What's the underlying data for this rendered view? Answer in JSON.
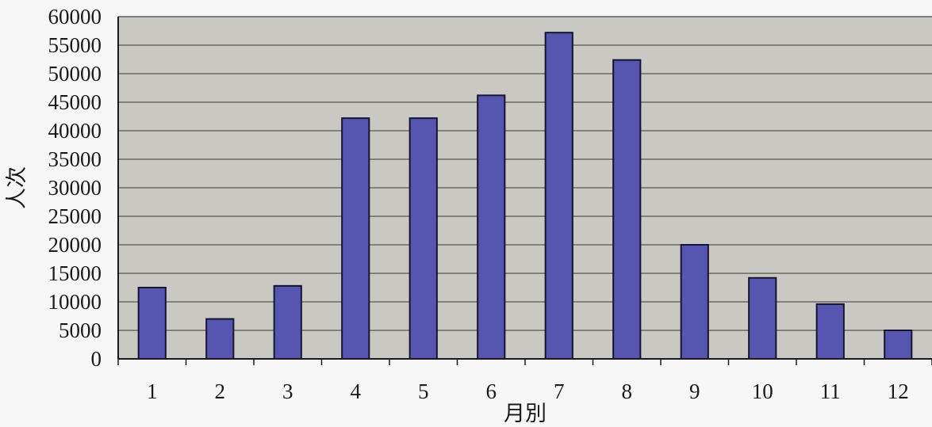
{
  "chart_data": {
    "type": "bar",
    "title": "",
    "xlabel": "月別",
    "ylabel": "人次",
    "categories": [
      "1",
      "2",
      "3",
      "4",
      "5",
      "6",
      "7",
      "8",
      "9",
      "10",
      "11",
      "12"
    ],
    "series": [
      {
        "values": [
          12500,
          7000,
          12800,
          42200,
          42200,
          46200,
          57200,
          52400,
          20000,
          14200,
          9600,
          5000
        ]
      }
    ],
    "ylim": [
      0,
      60000
    ],
    "yticks": [
      "0",
      "5000",
      "10000",
      "15000",
      "20000",
      "25000",
      "30000",
      "35000",
      "40000",
      "45000",
      "50000",
      "55000",
      "60000"
    ],
    "grid": true,
    "legend": "none",
    "colors": {
      "bar_fill": "#5656b0",
      "bar_stroke": "#151530",
      "plot_background": "#c9c8c2",
      "gridline": "#3a3a3a"
    }
  }
}
